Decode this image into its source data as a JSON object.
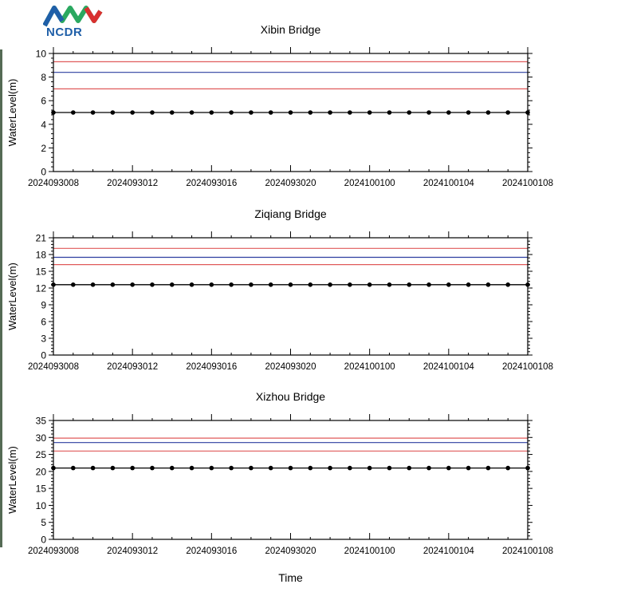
{
  "logo": {
    "text": "NCDR",
    "colors": [
      "#1f5fa8",
      "#2aa860",
      "#d9302f"
    ]
  },
  "x_tick_labels": [
    "2024093008",
    "2024093012",
    "2024093016",
    "2024093020",
    "2024100100",
    "2024100104",
    "2024100108"
  ],
  "xlabel": "Time",
  "colors": {
    "red_line": "#e05a5a",
    "blue_line": "#2c3fa0",
    "data": "#000000"
  },
  "chart_data": [
    {
      "type": "line",
      "title": "Xibin Bridge",
      "ylabel": "WaterLevel(m)",
      "xlim": [
        0,
        24
      ],
      "ylim": [
        0,
        10
      ],
      "y_ticks": [
        0,
        2,
        4,
        6,
        8,
        10
      ],
      "reference_lines": [
        {
          "color": "red",
          "y": 9.3
        },
        {
          "color": "blue",
          "y": 8.4
        },
        {
          "color": "red",
          "y": 7.0
        }
      ],
      "series": [
        {
          "x": [
            0,
            1,
            2,
            3,
            4,
            5,
            6,
            7,
            8,
            9,
            10,
            11,
            12,
            13,
            14,
            15,
            16,
            17,
            18,
            19,
            20,
            21,
            22,
            23,
            24
          ],
          "values": [
            5,
            5,
            5,
            5,
            5,
            5,
            5,
            5,
            5,
            5,
            5,
            5,
            5,
            5,
            5,
            5,
            5,
            5,
            5,
            5,
            5,
            5,
            5,
            5,
            5
          ]
        }
      ]
    },
    {
      "type": "line",
      "title": "Ziqiang Bridge",
      "ylabel": "WaterLevel(m)",
      "xlim": [
        0,
        24
      ],
      "ylim": [
        0,
        21
      ],
      "y_ticks": [
        0,
        3,
        6,
        9,
        12,
        15,
        18,
        21
      ],
      "reference_lines": [
        {
          "color": "red",
          "y": 19.1
        },
        {
          "color": "blue",
          "y": 17.5
        },
        {
          "color": "red",
          "y": 16.2
        }
      ],
      "series": [
        {
          "x": [
            0,
            1,
            2,
            3,
            4,
            5,
            6,
            7,
            8,
            9,
            10,
            11,
            12,
            13,
            14,
            15,
            16,
            17,
            18,
            19,
            20,
            21,
            22,
            23,
            24
          ],
          "values": [
            12.6,
            12.6,
            12.6,
            12.6,
            12.6,
            12.6,
            12.6,
            12.6,
            12.6,
            12.6,
            12.6,
            12.6,
            12.6,
            12.6,
            12.6,
            12.6,
            12.6,
            12.6,
            12.6,
            12.6,
            12.6,
            12.6,
            12.6,
            12.6,
            12.6
          ]
        }
      ]
    },
    {
      "type": "line",
      "title": "Xizhou Bridge",
      "ylabel": "WaterLevel(m)",
      "xlim": [
        0,
        24
      ],
      "ylim": [
        0,
        35
      ],
      "y_ticks": [
        0,
        5,
        10,
        15,
        20,
        25,
        30,
        35
      ],
      "reference_lines": [
        {
          "color": "red",
          "y": 29.8
        },
        {
          "color": "blue",
          "y": 28.5
        },
        {
          "color": "red",
          "y": 26.0
        }
      ],
      "series": [
        {
          "x": [
            0,
            1,
            2,
            3,
            4,
            5,
            6,
            7,
            8,
            9,
            10,
            11,
            12,
            13,
            14,
            15,
            16,
            17,
            18,
            19,
            20,
            21,
            22,
            23,
            24
          ],
          "values": [
            21,
            21,
            21,
            21,
            21,
            21,
            21,
            21,
            21,
            21,
            21,
            21,
            21,
            21,
            21,
            21,
            21,
            21,
            21,
            21,
            21,
            21,
            21,
            21,
            21
          ]
        }
      ]
    }
  ]
}
